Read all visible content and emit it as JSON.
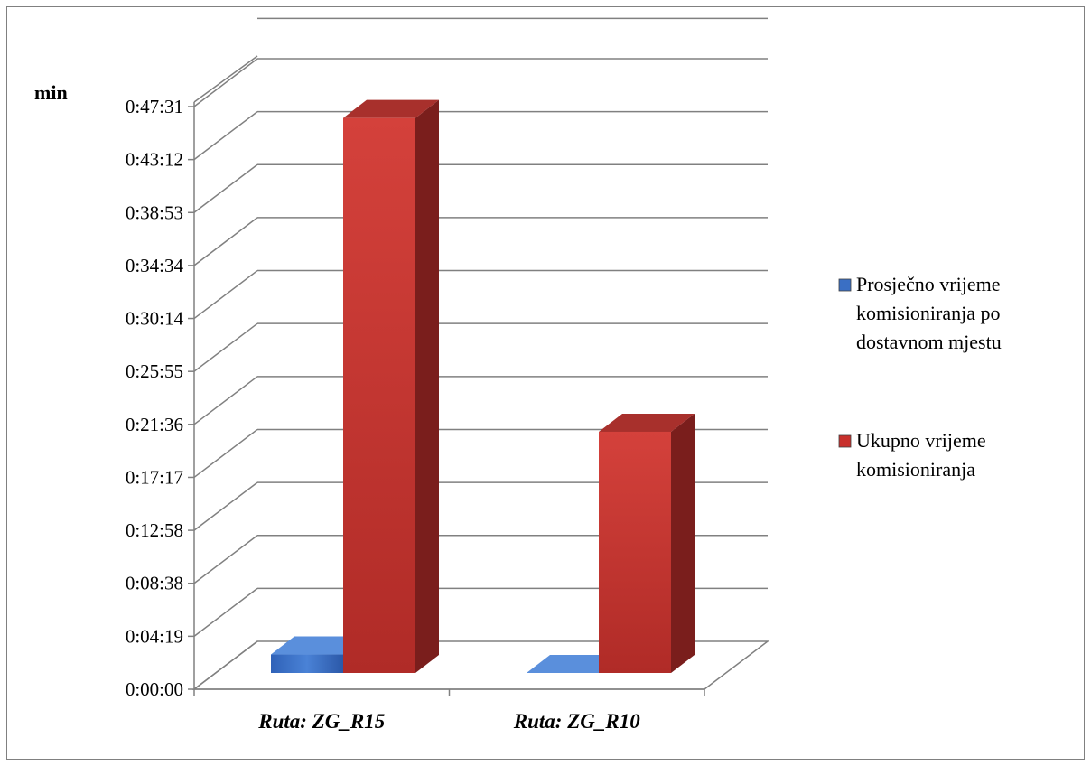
{
  "chart_data": {
    "type": "bar",
    "ylabel": "min",
    "categories": [
      "Ruta: ZG_R15",
      "Ruta: ZG_R10"
    ],
    "y_ticks": [
      "0:00:00",
      "0:04:19",
      "0:08:38",
      "0:12:58",
      "0:17:17",
      "0:21:36",
      "0:25:55",
      "0:30:14",
      "0:34:34",
      "0:38:53",
      "0:43:12",
      "0:47:31"
    ],
    "ylim_seconds": [
      0,
      2851
    ],
    "series": [
      {
        "name": "Prosječno vrijeme komisioniranja po dostavnom mjestu",
        "color": "#3a6fc4",
        "values": [
          "0:02:50",
          "0:01:15"
        ],
        "values_seconds": [
          170,
          75
        ]
      },
      {
        "name": "Ukupno vrijeme komisioniranja",
        "color": "#c8302c",
        "values": [
          "0:46:35",
          "0:21:00"
        ],
        "values_seconds": [
          2795,
          1260
        ]
      }
    ],
    "legend_position": "right",
    "grid": true,
    "style": "3d-clustered-column"
  }
}
